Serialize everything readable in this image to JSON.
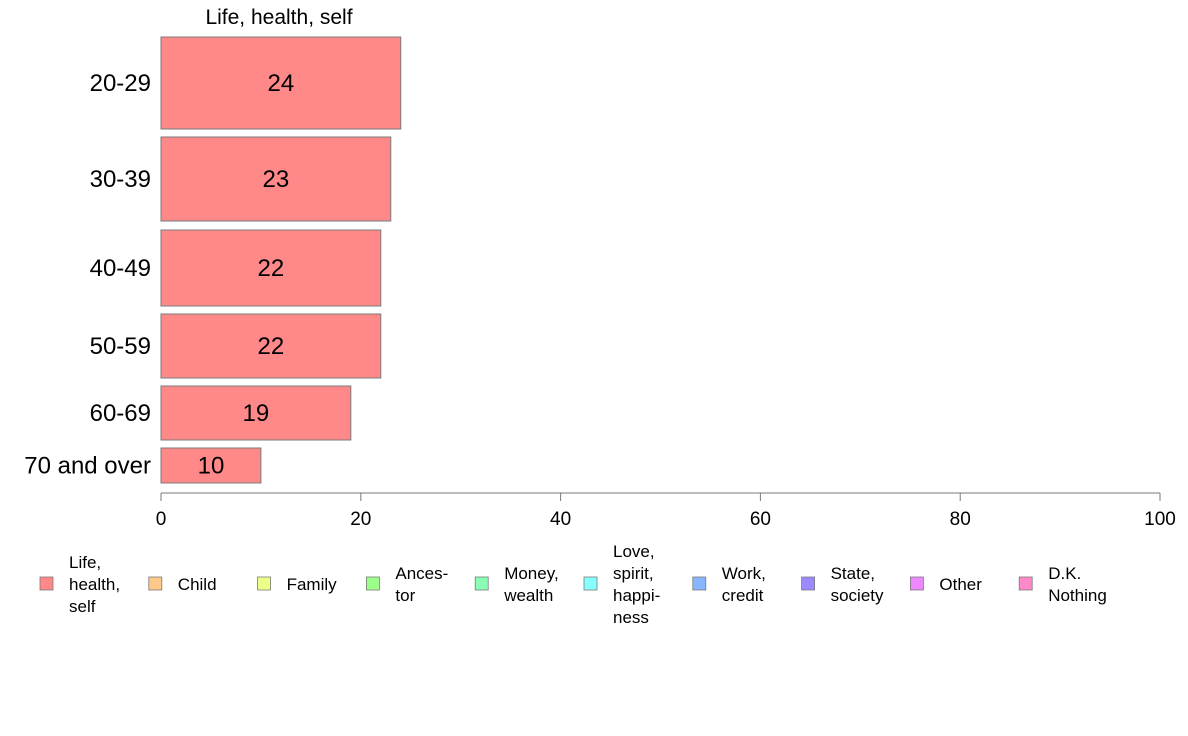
{
  "chart_data": {
    "type": "bar",
    "orientation": "horizontal",
    "title": "",
    "series_title": "Life, health, self",
    "xlabel": "",
    "ylabel": "",
    "xlim": [
      0,
      100
    ],
    "ticks": [
      "0",
      "20",
      "40",
      "60",
      "80",
      "100"
    ],
    "grid": false,
    "categories": [
      "20-29",
      "30-39",
      "40-49",
      "50-59",
      "60-69",
      "70 and over"
    ],
    "series": [
      {
        "name": "Life, health, self",
        "color": "#ff8888",
        "values": [
          24,
          23,
          22,
          22,
          19,
          10
        ]
      }
    ],
    "legend": {
      "placement": "bottom",
      "items": [
        {
          "lines": [
            "Life,",
            "health,",
            "self"
          ],
          "color": "#ff8888"
        },
        {
          "lines": [
            "Child"
          ],
          "color": "#ffc888"
        },
        {
          "lines": [
            "Family"
          ],
          "color": "#eeff88"
        },
        {
          "lines": [
            "Ances-",
            "tor"
          ],
          "color": "#9cff88"
        },
        {
          "lines": [
            "Money,",
            "wealth"
          ],
          "color": "#88ffb5"
        },
        {
          "lines": [
            "Love,",
            "spirit,",
            "happi-",
            "ness"
          ],
          "color": "#88ffff"
        },
        {
          "lines": [
            "Work,",
            "credit"
          ],
          "color": "#88b5ff"
        },
        {
          "lines": [
            "State,",
            "society"
          ],
          "color": "#9c88ff"
        },
        {
          "lines": [
            "Other"
          ],
          "color": "#ee88ff"
        },
        {
          "lines": [
            "D.K.",
            "Nothing"
          ],
          "color": "#ff88c8"
        }
      ]
    }
  }
}
